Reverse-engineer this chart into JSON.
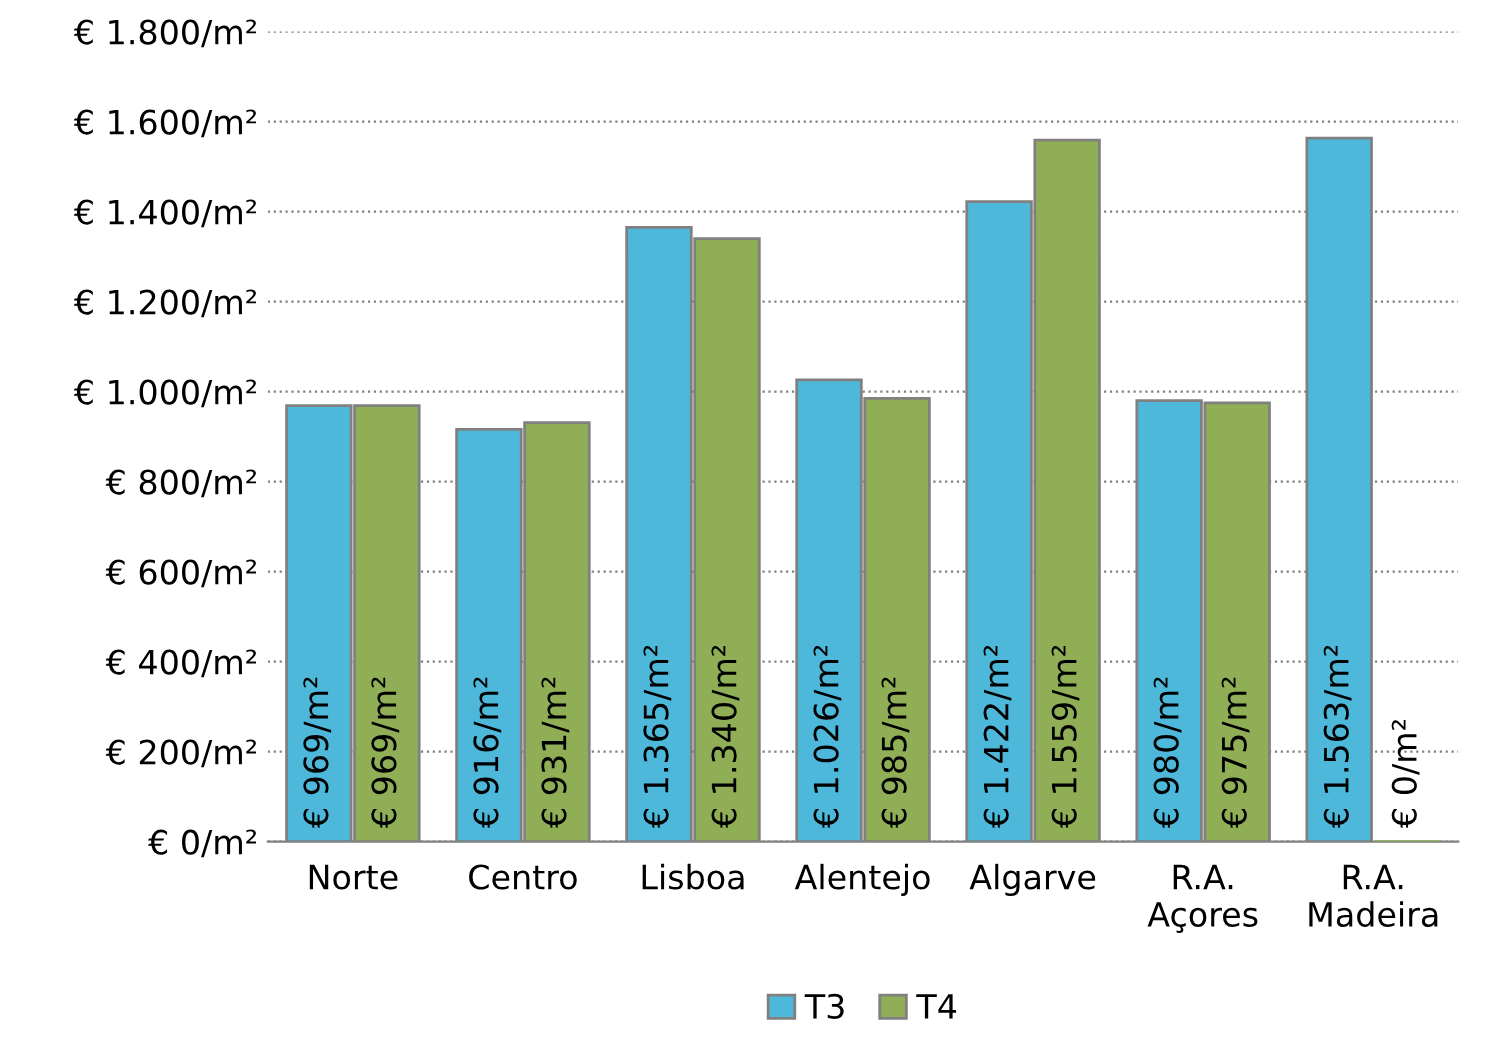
{
  "chart_data": {
    "type": "bar",
    "categories": [
      "Norte",
      "Centro",
      "Lisboa",
      "Alentejo",
      "Algarve",
      "R.A.\nAçores",
      "R.A.\nMadeira"
    ],
    "series": [
      {
        "name": "T3",
        "color": "#4db8da",
        "values": [
          969,
          916,
          1365,
          1026,
          1422,
          980,
          1563
        ],
        "value_labels": [
          "€ 969/m²",
          "€ 916/m²",
          "€ 1.365/m²",
          "€ 1.026/m²",
          "€ 1.422/m²",
          "€ 980/m²",
          "€ 1.563/m²"
        ]
      },
      {
        "name": "T4",
        "color": "#8fae55",
        "values": [
          969,
          931,
          1340,
          985,
          1559,
          975,
          0
        ],
        "value_labels": [
          "€ 969/m²",
          "€ 931/m²",
          "€ 1.340/m²",
          "€ 985/m²",
          "€ 1.559/m²",
          "€ 975/m²",
          "€ 0/m²"
        ]
      }
    ],
    "ylim": [
      0,
      1800
    ],
    "yticks": [
      {
        "value": 0,
        "label": "€ 0/m²"
      },
      {
        "value": 200,
        "label": "€ 200/m²"
      },
      {
        "value": 400,
        "label": "€ 400/m²"
      },
      {
        "value": 600,
        "label": "€ 600/m²"
      },
      {
        "value": 800,
        "label": "€ 800/m²"
      },
      {
        "value": 1000,
        "label": "€ 1.000/m²"
      },
      {
        "value": 1200,
        "label": "€ 1.200/m²"
      },
      {
        "value": 1400,
        "label": "€ 1.400/m²"
      },
      {
        "value": 1600,
        "label": "€ 1.600/m²"
      },
      {
        "value": 1800,
        "label": "€ 1.800/m²"
      }
    ],
    "grid": "y",
    "legend": "bottom"
  }
}
